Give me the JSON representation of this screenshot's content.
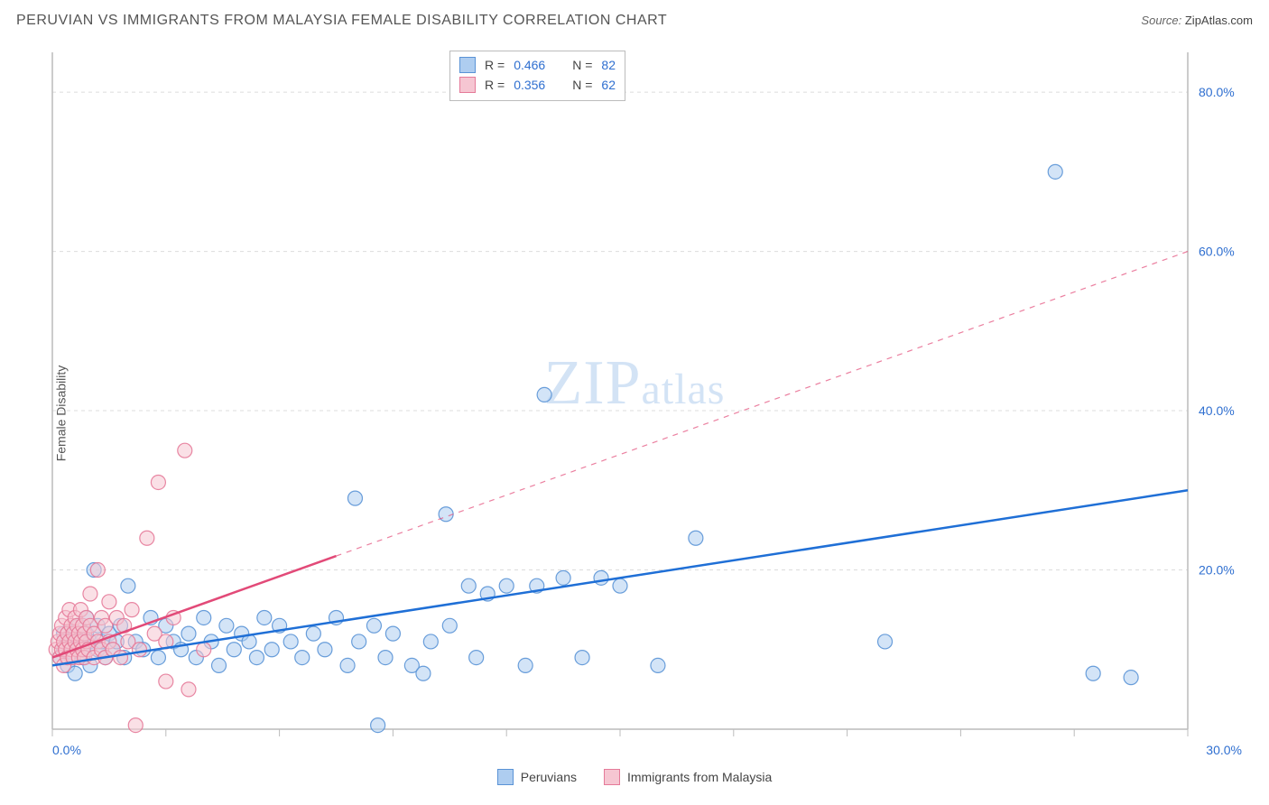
{
  "header": {
    "title": "PERUVIAN VS IMMIGRANTS FROM MALAYSIA FEMALE DISABILITY CORRELATION CHART",
    "source_label": "Source:",
    "source_value": "ZipAtlas.com"
  },
  "watermark": {
    "brand_a": "ZIP",
    "brand_b": "atlas"
  },
  "chart": {
    "type": "scatter",
    "y_axis_label": "Female Disability",
    "background_color": "#ffffff",
    "grid_color": "#dcdcdc",
    "axis_color": "#bcbcbc",
    "tick_label_color": "#2f6fd0",
    "axis_label_fontsize": 14,
    "tick_fontsize": 14,
    "xlim": [
      0,
      30
    ],
    "ylim": [
      0,
      85
    ],
    "x_ticks": [
      0,
      3,
      6,
      9,
      12,
      15,
      18,
      21,
      24,
      27,
      30
    ],
    "x_tick_labels": {
      "0": "0.0%",
      "30": "30.0%"
    },
    "y_ticks": [
      20,
      40,
      60,
      80
    ],
    "y_tick_labels": {
      "20": "20.0%",
      "40": "40.0%",
      "60": "60.0%",
      "80": "80.0%"
    },
    "marker_radius": 8,
    "marker_opacity": 0.55,
    "marker_stroke_opacity": 0.9,
    "series": [
      {
        "name": "Peruvians",
        "color_fill": "#aecdf0",
        "color_stroke": "#5a93d6",
        "line_color": "#1f6fd6",
        "line_width": 2.5,
        "r_value": "0.466",
        "n_value": "82",
        "trend": {
          "x1": 0,
          "y1": 8,
          "x2": 30,
          "y2": 30,
          "dash_from_x": null
        },
        "points": [
          [
            0.2,
            9
          ],
          [
            0.3,
            10
          ],
          [
            0.3,
            12
          ],
          [
            0.4,
            8
          ],
          [
            0.4,
            11
          ],
          [
            0.5,
            9
          ],
          [
            0.5,
            10.5
          ],
          [
            0.6,
            12
          ],
          [
            0.6,
            7
          ],
          [
            0.7,
            11
          ],
          [
            0.7,
            13
          ],
          [
            0.8,
            9
          ],
          [
            0.8,
            10
          ],
          [
            0.9,
            12
          ],
          [
            0.9,
            14
          ],
          [
            1.0,
            8
          ],
          [
            1.0,
            11
          ],
          [
            1.1,
            20
          ],
          [
            1.2,
            10
          ],
          [
            1.2,
            13
          ],
          [
            1.3,
            11
          ],
          [
            1.4,
            9
          ],
          [
            1.5,
            12
          ],
          [
            1.6,
            10
          ],
          [
            1.7,
            11
          ],
          [
            1.8,
            13
          ],
          [
            1.9,
            9
          ],
          [
            2.0,
            18
          ],
          [
            2.2,
            11
          ],
          [
            2.4,
            10
          ],
          [
            2.6,
            14
          ],
          [
            2.8,
            9
          ],
          [
            3.0,
            13
          ],
          [
            3.2,
            11
          ],
          [
            3.4,
            10
          ],
          [
            3.6,
            12
          ],
          [
            3.8,
            9
          ],
          [
            4.0,
            14
          ],
          [
            4.2,
            11
          ],
          [
            4.4,
            8
          ],
          [
            4.6,
            13
          ],
          [
            4.8,
            10
          ],
          [
            5.0,
            12
          ],
          [
            5.2,
            11
          ],
          [
            5.4,
            9
          ],
          [
            5.6,
            14
          ],
          [
            5.8,
            10
          ],
          [
            6.0,
            13
          ],
          [
            6.3,
            11
          ],
          [
            6.6,
            9
          ],
          [
            6.9,
            12
          ],
          [
            7.2,
            10
          ],
          [
            7.5,
            14
          ],
          [
            7.8,
            8
          ],
          [
            8.0,
            29
          ],
          [
            8.1,
            11
          ],
          [
            8.5,
            13
          ],
          [
            8.8,
            9
          ],
          [
            8.6,
            0.5
          ],
          [
            9.0,
            12
          ],
          [
            9.5,
            8
          ],
          [
            9.8,
            7
          ],
          [
            10.0,
            11
          ],
          [
            10.4,
            27
          ],
          [
            10.5,
            13
          ],
          [
            11.0,
            18
          ],
          [
            11.2,
            9
          ],
          [
            11.5,
            17
          ],
          [
            12.0,
            18
          ],
          [
            12.5,
            8
          ],
          [
            12.8,
            18
          ],
          [
            13.0,
            42
          ],
          [
            13.5,
            19
          ],
          [
            14.0,
            9
          ],
          [
            14.5,
            19
          ],
          [
            15.0,
            18
          ],
          [
            16.0,
            8
          ],
          [
            17.0,
            24
          ],
          [
            22.0,
            11
          ],
          [
            26.5,
            70
          ],
          [
            27.5,
            7
          ],
          [
            28.5,
            6.5
          ]
        ]
      },
      {
        "name": "Immigrants from Malaysia",
        "color_fill": "#f6c6d2",
        "color_stroke": "#e57a99",
        "line_color": "#e24a78",
        "line_width": 2.5,
        "r_value": "0.356",
        "n_value": "62",
        "trend": {
          "x1": 0,
          "y1": 9,
          "x2": 30,
          "y2": 60,
          "dash_from_x": 7.5
        },
        "points": [
          [
            0.1,
            10
          ],
          [
            0.15,
            11
          ],
          [
            0.2,
            9
          ],
          [
            0.2,
            12
          ],
          [
            0.25,
            10
          ],
          [
            0.25,
            13
          ],
          [
            0.3,
            8
          ],
          [
            0.3,
            11
          ],
          [
            0.35,
            10
          ],
          [
            0.35,
            14
          ],
          [
            0.4,
            9
          ],
          [
            0.4,
            12
          ],
          [
            0.45,
            11
          ],
          [
            0.45,
            15
          ],
          [
            0.5,
            10
          ],
          [
            0.5,
            13
          ],
          [
            0.55,
            9
          ],
          [
            0.55,
            12
          ],
          [
            0.6,
            11
          ],
          [
            0.6,
            14
          ],
          [
            0.65,
            10
          ],
          [
            0.65,
            13
          ],
          [
            0.7,
            9
          ],
          [
            0.7,
            12
          ],
          [
            0.75,
            11
          ],
          [
            0.75,
            15
          ],
          [
            0.8,
            10
          ],
          [
            0.8,
            13
          ],
          [
            0.85,
            9
          ],
          [
            0.85,
            12
          ],
          [
            0.9,
            11
          ],
          [
            0.9,
            14
          ],
          [
            0.95,
            10
          ],
          [
            1.0,
            13
          ],
          [
            1.0,
            17
          ],
          [
            1.1,
            9
          ],
          [
            1.1,
            12
          ],
          [
            1.2,
            11
          ],
          [
            1.2,
            20
          ],
          [
            1.3,
            10
          ],
          [
            1.3,
            14
          ],
          [
            1.4,
            9
          ],
          [
            1.4,
            13
          ],
          [
            1.5,
            11
          ],
          [
            1.5,
            16
          ],
          [
            1.6,
            10
          ],
          [
            1.7,
            14
          ],
          [
            1.8,
            9
          ],
          [
            1.9,
            13
          ],
          [
            2.0,
            11
          ],
          [
            2.1,
            15
          ],
          [
            2.2,
            0.5
          ],
          [
            2.3,
            10
          ],
          [
            2.5,
            24
          ],
          [
            2.7,
            12
          ],
          [
            2.8,
            31
          ],
          [
            3.0,
            11
          ],
          [
            3.0,
            6
          ],
          [
            3.2,
            14
          ],
          [
            3.5,
            35
          ],
          [
            3.6,
            5
          ],
          [
            4.0,
            10
          ]
        ]
      }
    ]
  },
  "legend": {
    "top": {
      "r_label": "R =",
      "n_label": "N ="
    },
    "bottom": {
      "items": [
        "Peruvians",
        "Immigrants from Malaysia"
      ]
    }
  }
}
